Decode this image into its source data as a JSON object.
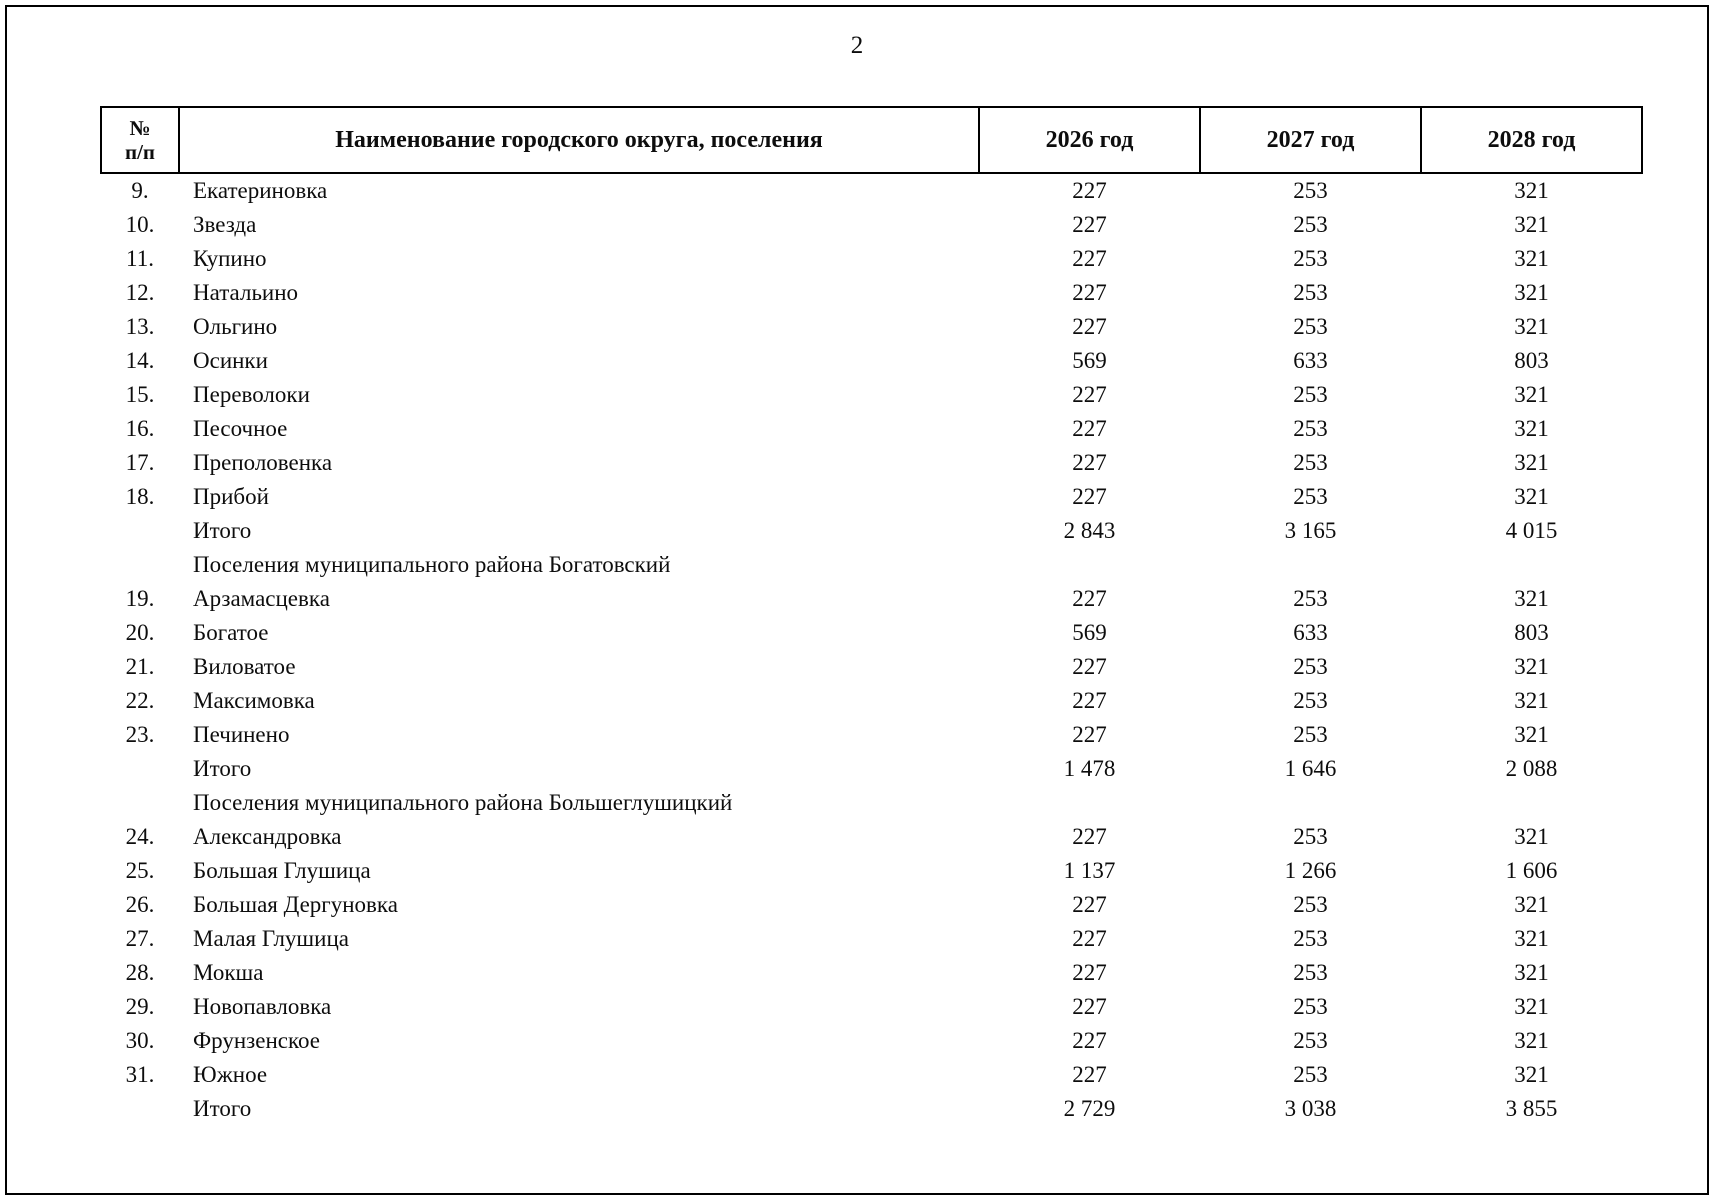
{
  "page": {
    "number": "2"
  },
  "table": {
    "headers": {
      "num_line1": "№",
      "num_line2": "п/п",
      "name": "Наименование городского округа, поселения",
      "y2026": "2026 год",
      "y2027": "2027 год",
      "y2028": "2028 год"
    },
    "rows": [
      {
        "type": "item",
        "num": "9.",
        "name": "Екатериновка",
        "y2026": "227",
        "y2027": "253",
        "y2028": "321"
      },
      {
        "type": "item",
        "num": "10.",
        "name": "Звезда",
        "y2026": "227",
        "y2027": "253",
        "y2028": "321"
      },
      {
        "type": "item",
        "num": "11.",
        "name": "Купино",
        "y2026": "227",
        "y2027": "253",
        "y2028": "321"
      },
      {
        "type": "item",
        "num": "12.",
        "name": "Натальино",
        "y2026": "227",
        "y2027": "253",
        "y2028": "321"
      },
      {
        "type": "item",
        "num": "13.",
        "name": "Ольгино",
        "y2026": "227",
        "y2027": "253",
        "y2028": "321"
      },
      {
        "type": "item",
        "num": "14.",
        "name": "Осинки",
        "y2026": "569",
        "y2027": "633",
        "y2028": "803"
      },
      {
        "type": "item",
        "num": "15.",
        "name": "Переволоки",
        "y2026": "227",
        "y2027": "253",
        "y2028": "321"
      },
      {
        "type": "item",
        "num": "16.",
        "name": "Песочное",
        "y2026": "227",
        "y2027": "253",
        "y2028": "321"
      },
      {
        "type": "item",
        "num": "17.",
        "name": "Преполовенка",
        "y2026": "227",
        "y2027": "253",
        "y2028": "321"
      },
      {
        "type": "item",
        "num": "18.",
        "name": "Прибой",
        "y2026": "227",
        "y2027": "253",
        "y2028": "321"
      },
      {
        "type": "total",
        "num": "",
        "name": "Итого",
        "y2026": "2 843",
        "y2027": "3 165",
        "y2028": "4 015"
      },
      {
        "type": "section",
        "num": "",
        "name": "Поселения муниципального района Богатовский",
        "y2026": "",
        "y2027": "",
        "y2028": ""
      },
      {
        "type": "item",
        "num": "19.",
        "name": "Арзамасцевка",
        "y2026": "227",
        "y2027": "253",
        "y2028": "321"
      },
      {
        "type": "item",
        "num": "20.",
        "name": "Богатое",
        "y2026": "569",
        "y2027": "633",
        "y2028": "803"
      },
      {
        "type": "item",
        "num": "21.",
        "name": "Виловатое",
        "y2026": "227",
        "y2027": "253",
        "y2028": "321"
      },
      {
        "type": "item",
        "num": "22.",
        "name": "Максимовка",
        "y2026": "227",
        "y2027": "253",
        "y2028": "321"
      },
      {
        "type": "item",
        "num": "23.",
        "name": "Печинено",
        "y2026": "227",
        "y2027": "253",
        "y2028": "321"
      },
      {
        "type": "total",
        "num": "",
        "name": "Итого",
        "y2026": "1 478",
        "y2027": "1 646",
        "y2028": "2 088"
      },
      {
        "type": "section",
        "num": "",
        "name": "Поселения муниципального района Большеглушицкий",
        "y2026": "",
        "y2027": "",
        "y2028": ""
      },
      {
        "type": "item",
        "num": "24.",
        "name": "Александровка",
        "y2026": "227",
        "y2027": "253",
        "y2028": "321"
      },
      {
        "type": "item",
        "num": "25.",
        "name": "Большая Глушица",
        "y2026": "1 137",
        "y2027": "1 266",
        "y2028": "1 606"
      },
      {
        "type": "item",
        "num": "26.",
        "name": "Большая Дергуновка",
        "y2026": "227",
        "y2027": "253",
        "y2028": "321"
      },
      {
        "type": "item",
        "num": "27.",
        "name": "Малая Глушица",
        "y2026": "227",
        "y2027": "253",
        "y2028": "321"
      },
      {
        "type": "item",
        "num": "28.",
        "name": "Мокша",
        "y2026": "227",
        "y2027": "253",
        "y2028": "321"
      },
      {
        "type": "item",
        "num": "29.",
        "name": "Новопавловка",
        "y2026": "227",
        "y2027": "253",
        "y2028": "321"
      },
      {
        "type": "item",
        "num": "30.",
        "name": "Фрунзенское",
        "y2026": "227",
        "y2027": "253",
        "y2028": "321"
      },
      {
        "type": "item",
        "num": "31.",
        "name": "Южное",
        "y2026": "227",
        "y2027": "253",
        "y2028": "321"
      },
      {
        "type": "total",
        "num": "",
        "name": "Итого",
        "y2026": "2 729",
        "y2027": "3 038",
        "y2028": "3 855"
      }
    ]
  }
}
